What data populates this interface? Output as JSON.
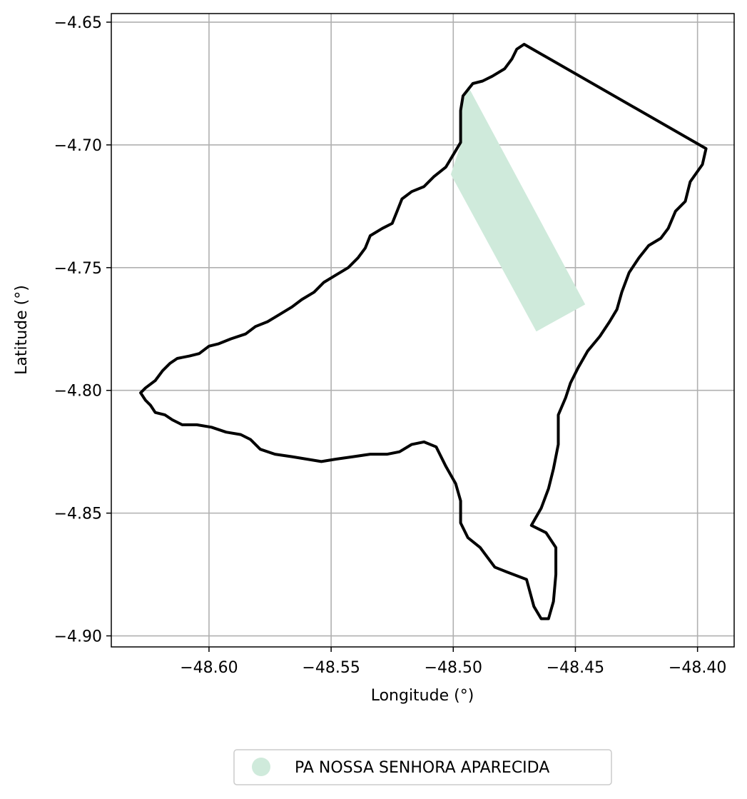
{
  "chart_data": {
    "type": "map",
    "xlabel": "Longitude (°)",
    "ylabel": "Latitude (°)",
    "xlim": [
      -48.64,
      -48.385
    ],
    "ylim": [
      -4.9045,
      -4.6465
    ],
    "grid": true,
    "legend_placement": "bottom-center",
    "x_ticks": [
      {
        "value": -48.6,
        "label": "−48.60"
      },
      {
        "value": -48.55,
        "label": "−48.55"
      },
      {
        "value": -48.5,
        "label": "−48.50"
      },
      {
        "value": -48.45,
        "label": "−48.45"
      },
      {
        "value": -48.4,
        "label": "−48.40"
      }
    ],
    "y_ticks": [
      {
        "value": -4.65,
        "label": "−4.65"
      },
      {
        "value": -4.7,
        "label": "−4.70"
      },
      {
        "value": -4.75,
        "label": "−4.75"
      },
      {
        "value": -4.8,
        "label": "−4.80"
      },
      {
        "value": -4.85,
        "label": "−4.85"
      },
      {
        "value": -4.9,
        "label": "−4.90"
      }
    ],
    "boundary": {
      "color": "#000000",
      "coords": [
        [
          -48.471,
          -4.659
        ],
        [
          -48.3965,
          -4.7015
        ],
        [
          -48.398,
          -4.708
        ],
        [
          -48.403,
          -4.715
        ],
        [
          -48.405,
          -4.723
        ],
        [
          -48.409,
          -4.727
        ],
        [
          -48.412,
          -4.734
        ],
        [
          -48.415,
          -4.738
        ],
        [
          -48.42,
          -4.741
        ],
        [
          -48.424,
          -4.746
        ],
        [
          -48.428,
          -4.752
        ],
        [
          -48.431,
          -4.76
        ],
        [
          -48.433,
          -4.767
        ],
        [
          -48.436,
          -4.772
        ],
        [
          -48.44,
          -4.778
        ],
        [
          -48.445,
          -4.784
        ],
        [
          -48.449,
          -4.791
        ],
        [
          -48.452,
          -4.797
        ],
        [
          -48.454,
          -4.803
        ],
        [
          -48.457,
          -4.81
        ],
        [
          -48.457,
          -4.822
        ],
        [
          -48.459,
          -4.832
        ],
        [
          -48.461,
          -4.84
        ],
        [
          -48.464,
          -4.848
        ],
        [
          -48.468,
          -4.855
        ],
        [
          -48.462,
          -4.858
        ],
        [
          -48.458,
          -4.864
        ],
        [
          -48.458,
          -4.875
        ],
        [
          -48.459,
          -4.886
        ],
        [
          -48.461,
          -4.893
        ],
        [
          -48.464,
          -4.893
        ],
        [
          -48.467,
          -4.888
        ],
        [
          -48.47,
          -4.877
        ],
        [
          -48.478,
          -4.874
        ],
        [
          -48.483,
          -4.872
        ],
        [
          -48.489,
          -4.864
        ],
        [
          -48.494,
          -4.86
        ],
        [
          -48.497,
          -4.854
        ],
        [
          -48.497,
          -4.845
        ],
        [
          -48.499,
          -4.838
        ],
        [
          -48.503,
          -4.831
        ],
        [
          -48.507,
          -4.823
        ],
        [
          -48.512,
          -4.821
        ],
        [
          -48.517,
          -4.822
        ],
        [
          -48.522,
          -4.825
        ],
        [
          -48.527,
          -4.826
        ],
        [
          -48.534,
          -4.826
        ],
        [
          -48.541,
          -4.827
        ],
        [
          -48.548,
          -4.828
        ],
        [
          -48.554,
          -4.829
        ],
        [
          -48.56,
          -4.828
        ],
        [
          -48.566,
          -4.827
        ],
        [
          -48.573,
          -4.826
        ],
        [
          -48.579,
          -4.824
        ],
        [
          -48.583,
          -4.82
        ],
        [
          -48.587,
          -4.818
        ],
        [
          -48.593,
          -4.817
        ],
        [
          -48.599,
          -4.815
        ],
        [
          -48.605,
          -4.814
        ],
        [
          -48.611,
          -4.814
        ],
        [
          -48.615,
          -4.812
        ],
        [
          -48.618,
          -4.81
        ],
        [
          -48.622,
          -4.809
        ],
        [
          -48.624,
          -4.806
        ],
        [
          -48.626,
          -4.804
        ],
        [
          -48.628,
          -4.801
        ],
        [
          -48.626,
          -4.799
        ],
        [
          -48.622,
          -4.796
        ],
        [
          -48.619,
          -4.792
        ],
        [
          -48.616,
          -4.789
        ],
        [
          -48.613,
          -4.787
        ],
        [
          -48.608,
          -4.786
        ],
        [
          -48.604,
          -4.785
        ],
        [
          -48.6,
          -4.782
        ],
        [
          -48.596,
          -4.781
        ],
        [
          -48.591,
          -4.779
        ],
        [
          -48.585,
          -4.777
        ],
        [
          -48.581,
          -4.774
        ],
        [
          -48.576,
          -4.772
        ],
        [
          -48.571,
          -4.769
        ],
        [
          -48.566,
          -4.766
        ],
        [
          -48.562,
          -4.763
        ],
        [
          -48.557,
          -4.76
        ],
        [
          -48.553,
          -4.756
        ],
        [
          -48.548,
          -4.753
        ],
        [
          -48.543,
          -4.75
        ],
        [
          -48.539,
          -4.746
        ],
        [
          -48.536,
          -4.742
        ],
        [
          -48.534,
          -4.737
        ],
        [
          -48.529,
          -4.734
        ],
        [
          -48.525,
          -4.732
        ],
        [
          -48.523,
          -4.727
        ],
        [
          -48.521,
          -4.722
        ],
        [
          -48.517,
          -4.719
        ],
        [
          -48.512,
          -4.717
        ],
        [
          -48.508,
          -4.713
        ],
        [
          -48.503,
          -4.709
        ],
        [
          -48.5,
          -4.704
        ],
        [
          -48.497,
          -4.699
        ],
        [
          -48.497,
          -4.693
        ],
        [
          -48.497,
          -4.686
        ],
        [
          -48.496,
          -4.68
        ],
        [
          -48.492,
          -4.675
        ],
        [
          -48.488,
          -4.674
        ],
        [
          -48.484,
          -4.672
        ],
        [
          -48.479,
          -4.669
        ],
        [
          -48.476,
          -4.665
        ],
        [
          -48.474,
          -4.661
        ],
        [
          -48.471,
          -4.659
        ]
      ]
    },
    "series": [
      {
        "name": "PA NOSSA SENHORA APARECIDA",
        "color": "#cfeadb",
        "coords": [
          [
            -48.494,
            -4.676
          ],
          [
            -48.446,
            -4.765
          ],
          [
            -48.466,
            -4.776
          ],
          [
            -48.501,
            -4.712
          ],
          [
            -48.497,
            -4.7
          ],
          [
            -48.497,
            -4.686
          ]
        ]
      }
    ]
  }
}
